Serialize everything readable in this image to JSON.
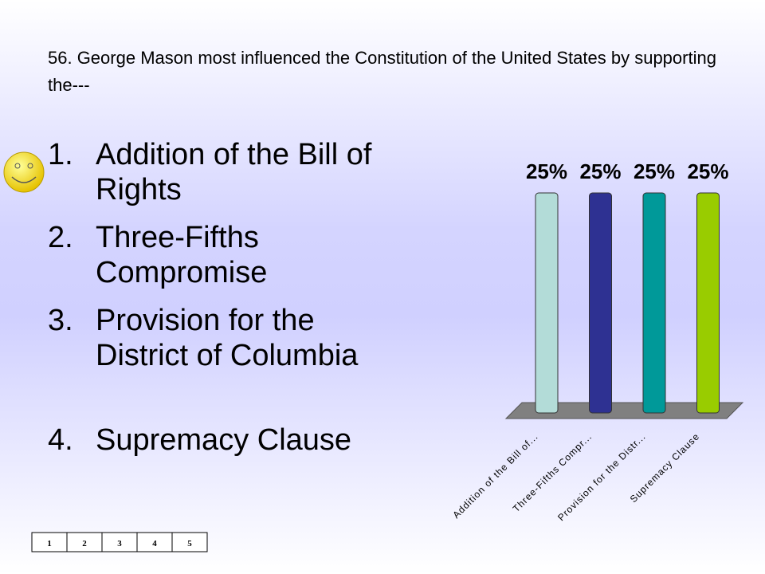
{
  "question": "56.  George Mason most influenced the Constitution of the United States by supporting the---",
  "options": [
    {
      "number": "1.",
      "text": "Addition of the Bill of Rights"
    },
    {
      "number": "2.",
      "text": "Three-Fifths Compromise"
    },
    {
      "number": "3.",
      "text": "Provision for the District of Columbia"
    },
    {
      "number": "4.",
      "text": "Supremacy Clause"
    }
  ],
  "counter": [
    "1",
    "2",
    "3",
    "4",
    "5"
  ],
  "chart_data": {
    "type": "bar",
    "categories": [
      "Addition of the Bill of...",
      "Three-Fifths Compr...",
      "Provision for the Distr...",
      "Supremacy Clause"
    ],
    "values": [
      25,
      25,
      25,
      25
    ],
    "value_labels": [
      "25%",
      "25%",
      "25%",
      "25%"
    ],
    "colors": [
      "#b3dcd8",
      "#2e3192",
      "#009999",
      "#99cc00"
    ]
  }
}
